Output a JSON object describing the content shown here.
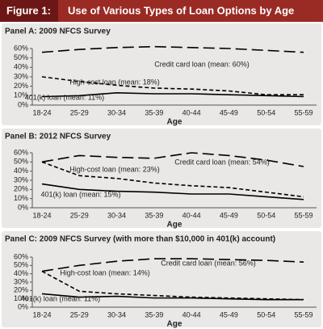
{
  "header": {
    "figure_label": "Figure 1:",
    "title": "Use of Various Types of Loan Options by Age"
  },
  "chart_data": [
    {
      "type": "line",
      "title": "Panel A: 2009 NFCS Survey",
      "x_label": "Age",
      "categories": [
        "18-24",
        "25-29",
        "30-34",
        "35-39",
        "40-44",
        "45-49",
        "50-54",
        "55-59"
      ],
      "ylim": [
        0,
        60
      ],
      "yticks": [
        {
          "value": 0,
          "label": "0%"
        },
        {
          "value": 10,
          "label": "10%"
        },
        {
          "value": 20,
          "label": "20%"
        },
        {
          "value": 30,
          "label": "30%"
        },
        {
          "value": 40,
          "label": "40%"
        },
        {
          "value": 50,
          "label": "50%"
        },
        {
          "value": 60,
          "label": "60%"
        }
      ],
      "series": [
        {
          "name": "Credit card loan (mean: 60%)",
          "color": "#000000",
          "line_style": "long-dash",
          "values": [
            56,
            59,
            61,
            62,
            61,
            60,
            58,
            56
          ]
        },
        {
          "name": "High-cost loan (mean: 18%)",
          "color": "#000000",
          "line_style": "short-dash",
          "values": [
            30,
            25,
            21,
            18,
            17,
            15,
            11,
            11
          ]
        },
        {
          "name": "401(k) loan (mean: 11%)",
          "color": "#000000",
          "line_style": "solid",
          "values": [
            9,
            10,
            13,
            12,
            12,
            11,
            10,
            9
          ]
        }
      ]
    },
    {
      "type": "line",
      "title": "Panel B: 2012 NFCS Survey",
      "x_label": "Age",
      "categories": [
        "18-24",
        "25-29",
        "30-34",
        "35-39",
        "40-44",
        "45-49",
        "50-54",
        "55-59"
      ],
      "ylim": [
        0,
        60
      ],
      "yticks": [
        {
          "value": 0,
          "label": "0%"
        },
        {
          "value": 10,
          "label": "10%"
        },
        {
          "value": 20,
          "label": "20%"
        },
        {
          "value": 30,
          "label": "30%"
        },
        {
          "value": 40,
          "label": "40%"
        },
        {
          "value": 50,
          "label": "50%"
        },
        {
          "value": 60,
          "label": "60%"
        }
      ],
      "series": [
        {
          "name": "Credit card loan (mean: 54%)",
          "color": "#000000",
          "line_style": "long-dash",
          "values": [
            50,
            57,
            55,
            54,
            60,
            57,
            52,
            45
          ]
        },
        {
          "name": "High-cost loan (mean: 23%)",
          "color": "#000000",
          "line_style": "short-dash",
          "values": [
            50,
            35,
            32,
            27,
            24,
            22,
            17,
            12
          ]
        },
        {
          "name": "401(k) loan (mean: 15%)",
          "color": "#000000",
          "line_style": "solid",
          "values": [
            26,
            20,
            18,
            17,
            15,
            15,
            12,
            9
          ]
        }
      ]
    },
    {
      "type": "line",
      "title": "Panel C: 2009 NFCS Survey (with more than $10,000 in 401(k) account)",
      "x_label": "Age",
      "categories": [
        "18-24",
        "25-29",
        "30-34",
        "35-39",
        "40-44",
        "45-49",
        "50-54",
        "55-59"
      ],
      "ylim": [
        0,
        60
      ],
      "yticks": [
        {
          "value": 0,
          "label": "0%"
        },
        {
          "value": 10,
          "label": "10%"
        },
        {
          "value": 20,
          "label": "20%"
        },
        {
          "value": 30,
          "label": "30%"
        },
        {
          "value": 40,
          "label": "40%"
        },
        {
          "value": 50,
          "label": "50%"
        },
        {
          "value": 60,
          "label": "60%"
        }
      ],
      "series": [
        {
          "name": "Credit card loan (mean: 56%)",
          "color": "#000000",
          "line_style": "long-dash",
          "values": [
            43,
            50,
            55,
            58,
            58,
            57,
            56,
            54
          ]
        },
        {
          "name": "High-cost loan (mean: 14%)",
          "color": "#000000",
          "line_style": "short-dash",
          "values": [
            43,
            19,
            16,
            14,
            12,
            11,
            10,
            9
          ]
        },
        {
          "name": "401(k) loan (mean: 11%)",
          "color": "#000000",
          "line_style": "solid",
          "values": [
            16,
            12,
            13,
            11,
            11,
            10,
            9,
            9
          ]
        }
      ]
    }
  ]
}
